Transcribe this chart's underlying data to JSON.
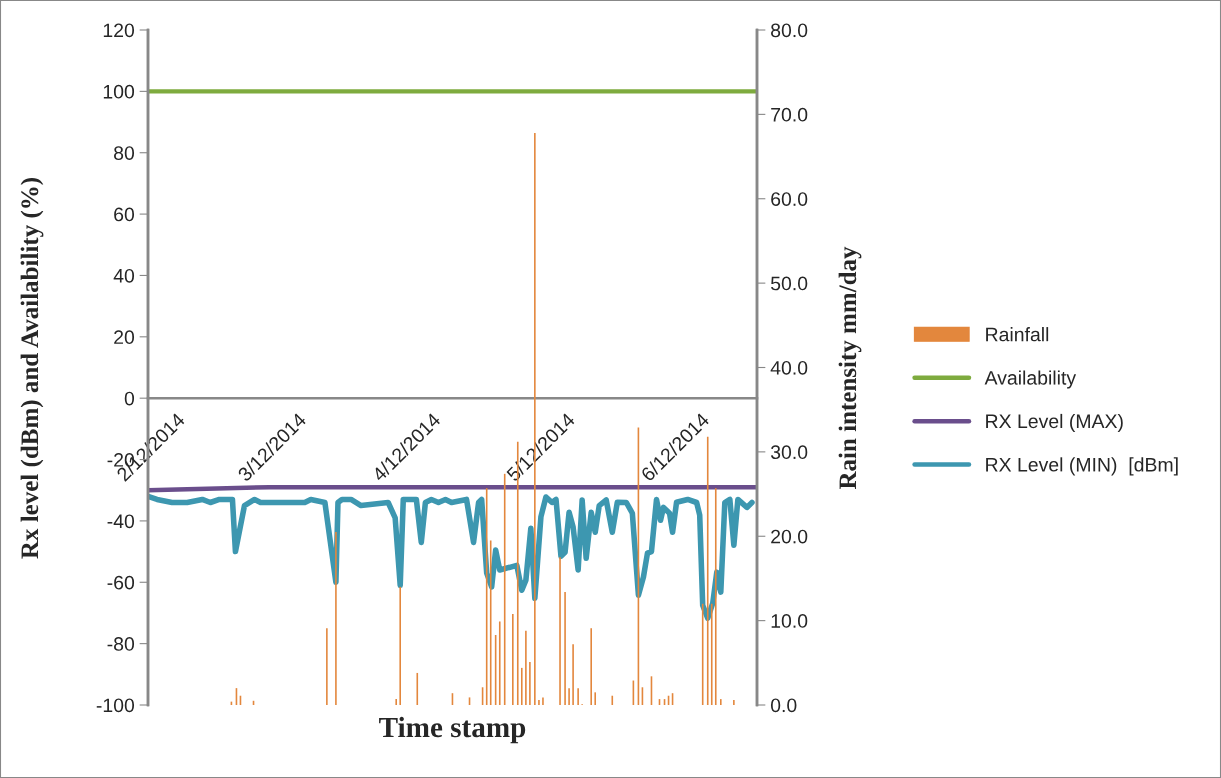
{
  "chart_data": {
    "type": "line",
    "xlabel": "Time stamp",
    "ylabel": "Rx level (dBm) and Availability (%)",
    "y2label": "Rain intensity mm/day",
    "xlim": [
      "2014-12-02T02:20",
      "2014-12-06T15:07"
    ],
    "xticks": [
      {
        "value": "2014-12-02T02:20",
        "label": "2/12/2014"
      },
      {
        "value": "2014-12-03",
        "label": "3/12/2014"
      },
      {
        "value": "2014-12-04",
        "label": "4/12/2014"
      },
      {
        "value": "2014-12-05",
        "label": "5/12/2014"
      },
      {
        "value": "2014-12-06",
        "label": "6/12/2014"
      }
    ],
    "ylim": [
      -100,
      120
    ],
    "yticks": [
      -100,
      -80,
      -60,
      -40,
      -20,
      0,
      20,
      40,
      60,
      80,
      100,
      120
    ],
    "y2lim": [
      0,
      80
    ],
    "y2ticks": [
      {
        "value": 0,
        "label": "0.0"
      },
      {
        "value": 10,
        "label": "10.0"
      },
      {
        "value": 20,
        "label": "20.0"
      },
      {
        "value": 30,
        "label": "30.0"
      },
      {
        "value": 40,
        "label": "40.0"
      },
      {
        "value": 50,
        "label": "50.0"
      },
      {
        "value": 60,
        "label": "60.0"
      },
      {
        "value": 70,
        "label": "70.0"
      },
      {
        "value": 80,
        "label": "80.0"
      }
    ],
    "legend": "right",
    "marker": "none",
    "line_style": "solid",
    "series": [
      {
        "name": "Rainfall",
        "type": "bar",
        "axis": "y2",
        "color": "#e3873d",
        "x": [
          "2014-12-02T17:14",
          "2014-12-02T18:08",
          "2014-12-02T18:51",
          "2014-12-02T21:11",
          "2014-12-03T10:17",
          "2014-12-03T11:54",
          "2014-12-03T22:40",
          "2014-12-03T23:23",
          "2014-12-04T02:26",
          "2014-12-04T08:43",
          "2014-12-04T11:46",
          "2014-12-04T14:06",
          "2014-12-04T14:50",
          "2014-12-04T15:33",
          "2014-12-04T16:26",
          "2014-12-04T17:10",
          "2014-12-04T18:03",
          "2014-12-04T19:30",
          "2014-12-04T20:23",
          "2014-12-04T21:06",
          "2014-12-04T21:50",
          "2014-12-04T22:33",
          "2014-12-04T23:26",
          "2014-12-05T00:10",
          "2014-12-05T00:53",
          "2014-12-05T03:56",
          "2014-12-05T04:50",
          "2014-12-05T05:33",
          "2014-12-05T06:16",
          "2014-12-05T07:10",
          "2014-12-05T07:53",
          "2014-12-05T09:30",
          "2014-12-05T10:13",
          "2014-12-05T13:16",
          "2014-12-05T17:02",
          "2014-12-05T17:56",
          "2014-12-05T18:39",
          "2014-12-05T20:16",
          "2014-12-05T21:42",
          "2014-12-05T22:36",
          "2014-12-05T23:19",
          "2014-12-06T00:02",
          "2014-12-06T05:25",
          "2014-12-06T06:19",
          "2014-12-06T07:02",
          "2014-12-06T07:45",
          "2014-12-06T08:39",
          "2014-12-06T10:59"
        ],
        "values": [
          0.4,
          2.0,
          1.1,
          0.5,
          9.1,
          20.5,
          0.7,
          14,
          3.8,
          1.4,
          0.9,
          2.1,
          25.7,
          19.5,
          8.3,
          9.9,
          27.4,
          10.8,
          31.2,
          4.4,
          8.8,
          5.1,
          67.8,
          0.6,
          0.9,
          17.5,
          13.4,
          2.0,
          7.2,
          2.0,
          0.1,
          9.1,
          1.5,
          1.1,
          2.9,
          32.9,
          2.1,
          3.4,
          0.7,
          0.7,
          1.1,
          1.4,
          12,
          31.8,
          12,
          25.7,
          0.7,
          0.6
        ]
      },
      {
        "name": "Availability",
        "color": "#7eab3e",
        "x": [
          "2014-12-02T02:20",
          "2014-12-06T15:07"
        ],
        "values": [
          100,
          100
        ]
      },
      {
        "name": "RX Level (MAX)",
        "color": "#6a4e8c",
        "x": [
          "2014-12-02T02:20",
          "2014-12-03T00:00",
          "2014-12-04T00:00",
          "2014-12-05T00:00",
          "2014-12-06T00:00",
          "2014-12-06T15:07"
        ],
        "values": [
          -30,
          -29,
          -29,
          -29,
          -29,
          -29
        ]
      },
      {
        "name": "RX Level (MIN)  [dBm]",
        "color": "#3d97b0",
        "x": [
          "2014-12-02T02:20",
          "2014-12-02T03:57",
          "2014-12-02T06:38",
          "2014-12-02T09:20",
          "2014-12-02T12:02",
          "2014-12-02T13:28",
          "2014-12-02T15:05",
          "2014-12-02T17:25",
          "2014-12-02T17:57",
          "2014-12-02T19:34",
          "2014-12-02T21:22",
          "2014-12-02T22:26",
          "2014-12-03T06:20",
          "2014-12-03T07:25",
          "2014-12-03T09:56",
          "2014-12-03T11:54",
          "2014-12-03T12:16",
          "2014-12-03T12:59",
          "2014-12-03T14:36",
          "2014-12-03T16:23",
          "2014-12-03T21:14",
          "2014-12-03T22:29",
          "2014-12-03T23:23",
          "2014-12-03T23:56",
          "2014-12-04T01:22",
          "2014-12-04T02:16",
          "2014-12-04T03:09",
          "2014-12-04T03:53",
          "2014-12-04T04:57",
          "2014-12-04T06:13",
          "2014-12-04T07:28",
          "2014-12-04T08:33",
          "2014-12-04T11:14",
          "2014-12-04T12:29",
          "2014-12-04T13:23",
          "2014-12-04T13:56",
          "2014-12-04T14:50",
          "2014-12-04T15:43",
          "2014-12-04T16:26",
          "2014-12-04T17:10",
          "2014-12-04T20:13",
          "2014-12-04T21:06",
          "2014-12-04T21:50",
          "2014-12-04T22:43",
          "2014-12-04T23:26",
          "2014-12-05T00:31",
          "2014-12-05T01:25",
          "2014-12-05T02:30",
          "2014-12-05T03:13",
          "2014-12-05T04:06",
          "2014-12-05T04:50",
          "2014-12-05T05:33",
          "2014-12-05T06:16",
          "2014-12-05T07:10",
          "2014-12-05T07:53",
          "2014-12-05T08:36",
          "2014-12-05T09:30",
          "2014-12-05T10:13",
          "2014-12-05T10:56",
          "2014-12-05T12:11",
          "2014-12-05T13:16",
          "2014-12-05T14:10",
          "2014-12-05T15:47",
          "2014-12-05T16:51",
          "2014-12-05T17:56",
          "2014-12-05T18:50",
          "2014-12-05T19:33",
          "2014-12-05T20:16",
          "2014-12-05T21:10",
          "2014-12-05T21:53",
          "2014-12-05T22:25",
          "2014-12-05T23:30",
          "2014-12-06T00:02",
          "2014-12-06T00:45",
          "2014-12-06T02:44",
          "2014-12-06T04:20",
          "2014-12-06T04:53",
          "2014-12-06T05:25",
          "2014-12-06T06:19",
          "2014-12-06T07:13",
          "2014-12-06T07:56",
          "2014-12-06T08:39",
          "2014-12-06T09:22",
          "2014-12-06T10:16",
          "2014-12-06T10:59",
          "2014-12-06T11:42",
          "2014-12-06T13:19",
          "2014-12-06T14:13"
        ],
        "values": [
          -32,
          -33,
          -34,
          -34,
          -33,
          -34,
          -33,
          -33,
          -50,
          -35,
          -33,
          -34,
          -34,
          -33,
          -34,
          -60,
          -34,
          -33,
          -33,
          -35,
          -34,
          -39,
          -61,
          -33,
          -33,
          -33,
          -47,
          -34,
          -33,
          -34,
          -33,
          -34,
          -33,
          -47,
          -34,
          -33,
          -57,
          -61.5,
          -49.5,
          -56,
          -54.5,
          -62.6,
          -59.3,
          -42.4,
          -65.2,
          -38.7,
          -32.2,
          -34,
          -33,
          -51.5,
          -50.2,
          -37.2,
          -42,
          -56,
          -33.2,
          -52.2,
          -37.2,
          -43.7,
          -35,
          -33.2,
          -43.7,
          -33.9,
          -34,
          -37.5,
          -64.2,
          -58.3,
          -50.5,
          -50,
          -33,
          -39.8,
          -35.6,
          -37.5,
          -43.7,
          -33.9,
          -33,
          -34,
          -38.1,
          -67.5,
          -71.7,
          -66.8,
          -56.7,
          -63.2,
          -34,
          -33,
          -47.9,
          -33,
          -35.6,
          -34
        ]
      }
    ]
  }
}
